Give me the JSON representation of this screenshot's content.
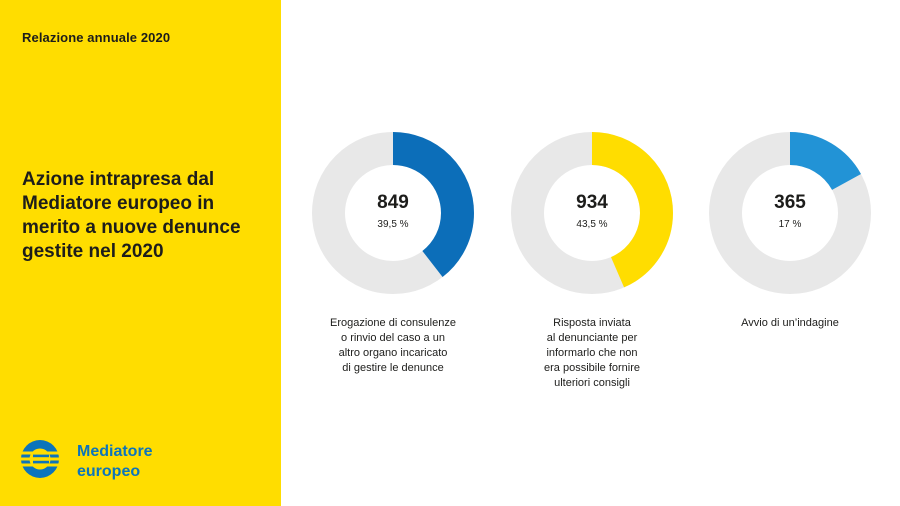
{
  "report_label": "Relazione annuale 2020",
  "headline": "Azione intrapresa dal Mediatore europeo in merito a nuove denunce gestite nel 2020",
  "brand": {
    "line1": "Mediatore",
    "line2": "europeo",
    "logo_icon": "ombudsman-logo-icon"
  },
  "colors": {
    "sidebar": "#ffdd00",
    "track": "#e8e8e8",
    "brand": "#0c74bb"
  },
  "chart_data": {
    "type": "pie",
    "variant": "donut",
    "charts": [
      {
        "value": "849",
        "percent_label": "39,5 %",
        "percent": 39.5,
        "color": "#0c6eb9",
        "label_lines": [
          "Erogazione di consulenze",
          "o rinvio del caso a un",
          "altro organo incaricato",
          "di gestire le denunce"
        ]
      },
      {
        "value": "934",
        "percent_label": "43,5 %",
        "percent": 43.5,
        "color": "#ffdd00",
        "label_lines": [
          "Risposta inviata",
          "al denunciante per",
          "informarlo che non",
          "era possibile fornire",
          "ulteriori consigli"
        ]
      },
      {
        "value": "365",
        "percent_label": "17 %",
        "percent": 17,
        "color": "#2293d6",
        "label_lines": [
          "Avvio di un’indagine"
        ]
      }
    ]
  }
}
